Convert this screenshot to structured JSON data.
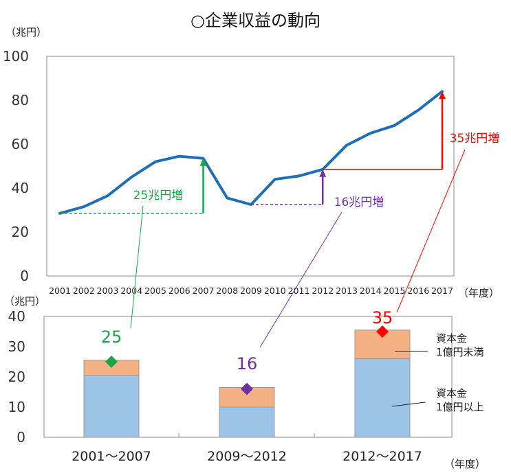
{
  "title": "○企業収益の動向",
  "colors": {
    "line": "#1f6fb8",
    "green": "#1aa64a",
    "purple": "#7030a0",
    "red": "#ff0000",
    "bar_large": "#9dc3e6",
    "bar_small": "#f4b183",
    "axis": "#555555"
  },
  "chart_data": [
    {
      "type": "line",
      "ylabel": "（兆円）",
      "xlabel": "（年度）",
      "ylim": [
        0,
        100
      ],
      "yticks": [
        0,
        20,
        40,
        60,
        80,
        100
      ],
      "x": [
        "2001",
        "2002",
        "2003",
        "2004",
        "2005",
        "2006",
        "2007",
        "2008",
        "2009",
        "2010",
        "2011",
        "2012",
        "2013",
        "2014",
        "2015",
        "2016",
        "2017"
      ],
      "values": [
        28.5,
        31.5,
        36.5,
        45,
        52,
        54.5,
        53.5,
        35.5,
        32.5,
        44,
        45.5,
        48.5,
        59.5,
        65,
        68.5,
        75.5,
        84
      ],
      "annotations": [
        {
          "label": "25兆円増",
          "from": "2001",
          "to": "2007",
          "color_key": "green"
        },
        {
          "label": "16兆円増",
          "from": "2009",
          "to": "2012",
          "color_key": "purple"
        },
        {
          "label": "35兆円増",
          "from": "2012",
          "to": "2017",
          "color_key": "red"
        }
      ]
    },
    {
      "type": "bar",
      "stacked": true,
      "ylabel": "（兆円）",
      "xlabel": "（年度）",
      "ylim": [
        0,
        40
      ],
      "yticks": [
        0,
        10,
        20,
        30,
        40
      ],
      "categories": [
        "2001～2007",
        "2009～2012",
        "2012～2017"
      ],
      "series": [
        {
          "name": "資本金\n1億円以上",
          "values": [
            20.5,
            10,
            26
          ]
        },
        {
          "name": "資本金\n1億円未満",
          "values": [
            5,
            6.5,
            9.5
          ]
        }
      ],
      "markers": [
        {
          "label": "25",
          "value": 25,
          "color_key": "green"
        },
        {
          "label": "16",
          "value": 16,
          "color_key": "purple"
        },
        {
          "label": "35",
          "value": 35,
          "color_key": "red"
        }
      ]
    }
  ]
}
